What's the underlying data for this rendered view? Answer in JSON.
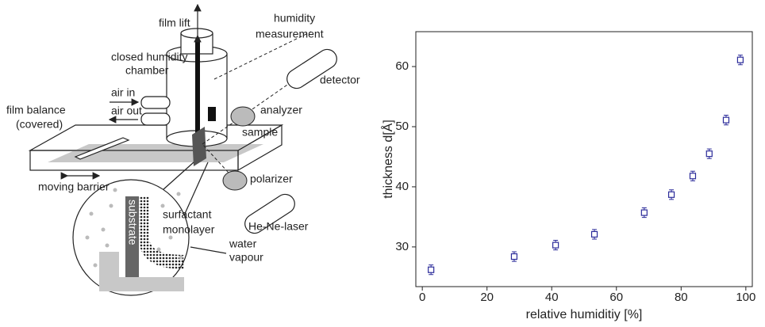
{
  "diagram": {
    "labels": {
      "film_lift": "film lift",
      "humidity_1": "humidity",
      "humidity_2": "measurement",
      "chamber_1": "closed humidity",
      "chamber_2": "chamber",
      "detector": "detector",
      "air_in": "air in",
      "air_out": "air out",
      "balance_1": "film balance",
      "balance_2": "(covered)",
      "analyzer": "analyzer",
      "sample": "sample",
      "barrier": "moving barrier",
      "polarizer": "polarizer",
      "laser": "He-Ne-laser",
      "substrate": "substrate",
      "surfactant_1": "surfactant",
      "surfactant_2": "monolayer",
      "water_1": "water",
      "water_2": "vapour"
    }
  },
  "chart_data": {
    "type": "scatter",
    "x_label": "relative humiditiy [%]",
    "y_label": "thickness d[Å]",
    "x": [
      2.7,
      28.4,
      41.2,
      53.2,
      68.6,
      77,
      83.6,
      88.7,
      93.9,
      98.3
    ],
    "series": [
      {
        "color": "#2b2b9a",
        "values": [
          26.2,
          28.4,
          30.3,
          32.1,
          35.7,
          38.7,
          41.8,
          45.5,
          51.1,
          61.1
        ],
        "errors": [
          0.8,
          0.8,
          0.8,
          0.8,
          0.8,
          0.8,
          0.8,
          0.8,
          0.8,
          0.8
        ]
      }
    ],
    "xlim": [
      -2,
      102
    ],
    "ylim": [
      23.4,
      65.8
    ],
    "xticks": [
      0,
      20,
      40,
      60,
      80,
      100
    ],
    "yticks": [
      30,
      40,
      50,
      60
    ]
  }
}
